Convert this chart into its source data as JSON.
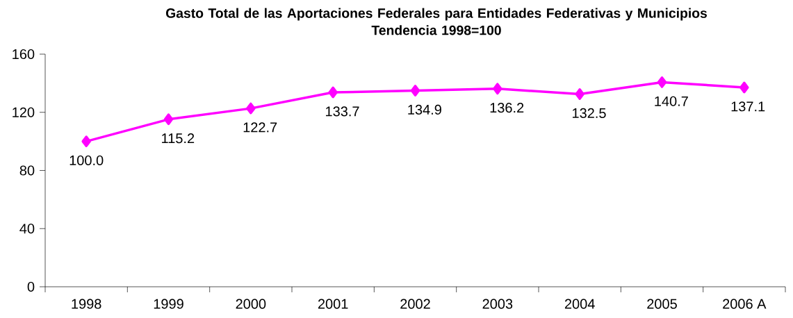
{
  "chart_data": {
    "type": "line",
    "title": "Gasto Total de las Aportaciones Federales para Entidades Federativas y Municipios",
    "subtitle": "Tendencia 1998=100",
    "categories": [
      "1998",
      "1999",
      "2000",
      "2001",
      "2002",
      "2003",
      "2004",
      "2005",
      "2006 A"
    ],
    "series": [
      {
        "color": "#ff00ff",
        "values": [
          100.0,
          115.2,
          122.7,
          133.7,
          134.9,
          136.2,
          132.5,
          140.7,
          137.1
        ],
        "value_labels": [
          "100.0",
          "115.2",
          "122.7",
          "133.7",
          "134.9",
          "136.2",
          "132.5",
          "140.7",
          "137.1"
        ]
      }
    ],
    "ylim": [
      0,
      160
    ],
    "yticks": [
      0,
      40,
      80,
      120,
      160
    ],
    "grid": false,
    "marker": "diamond",
    "line_style": "solid"
  }
}
